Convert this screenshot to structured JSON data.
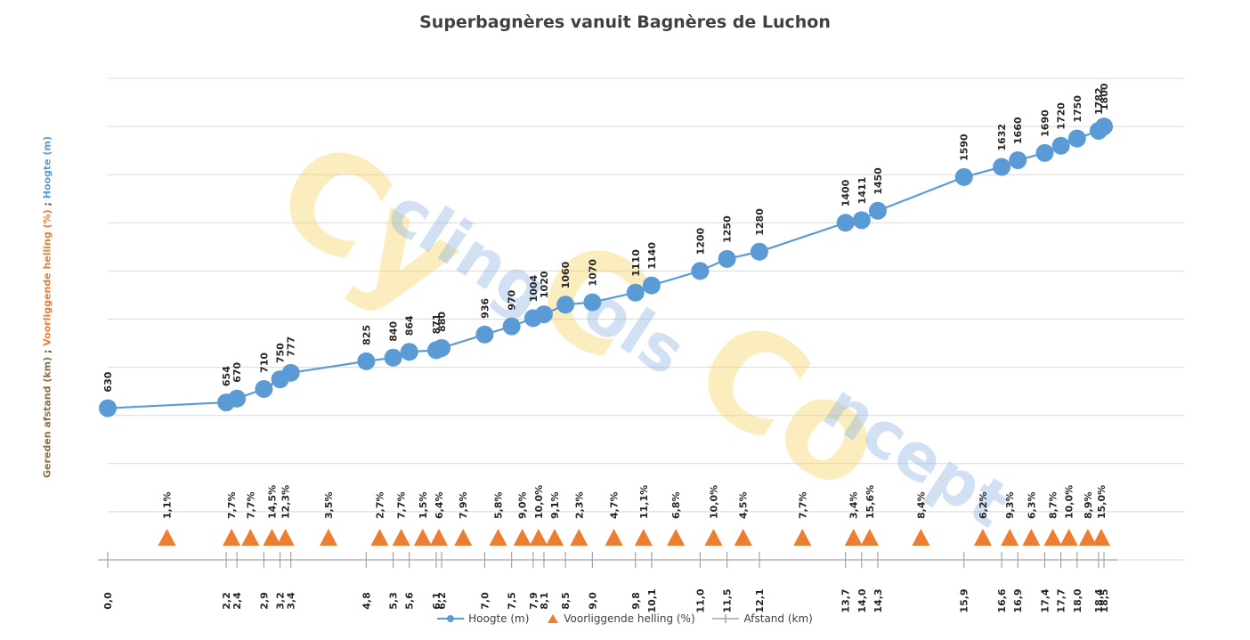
{
  "chart_data": {
    "type": "line",
    "title": "Superbagnères vanuit Bagnères de Luchon",
    "yaxis_title": {
      "parts": [
        {
          "text": "Gereden afstand (km)",
          "color": "#8c6d45"
        },
        {
          "text": " ; ",
          "color": "#404040"
        },
        {
          "text": "Voorliggende helling (%)",
          "color": "#ed7d31"
        },
        {
          "text": " ; ",
          "color": "#404040"
        },
        {
          "text": "Hoogte (m)",
          "color": "#5b9bd5"
        }
      ]
    },
    "grid": true,
    "ylim": [
      0,
      2000
    ],
    "legend_position": "bottom",
    "watermark": "CyclingColsConcept",
    "series": [
      {
        "name": "Hoogte (m)",
        "color": "#5b9bd5",
        "marker": "circle",
        "x": [
          0.0,
          2.2,
          2.4,
          2.9,
          3.2,
          3.4,
          4.8,
          5.3,
          5.6,
          6.1,
          6.2,
          7.0,
          7.5,
          7.9,
          8.1,
          8.5,
          9.0,
          9.8,
          10.1,
          11.0,
          11.5,
          12.1,
          13.7,
          14.0,
          14.3,
          15.9,
          16.6,
          16.9,
          17.4,
          17.7,
          18.0,
          18.4,
          18.5
        ],
        "values": [
          630,
          654,
          670,
          710,
          750,
          777,
          825,
          840,
          864,
          871,
          880,
          936,
          970,
          1004,
          1020,
          1060,
          1070,
          1110,
          1140,
          1200,
          1250,
          1280,
          1400,
          1411,
          1450,
          1590,
          1632,
          1660,
          1690,
          1720,
          1750,
          1782,
          1800
        ],
        "labels": [
          "630",
          "654",
          "670",
          "710",
          "750",
          "777",
          "825",
          "840",
          "864",
          "871",
          "880",
          "936",
          "970",
          "1004",
          "1020",
          "1060",
          "1070",
          "1110",
          "1140",
          "1200",
          "1250",
          "1280",
          "1400",
          "1411",
          "1450",
          "1590",
          "1632",
          "1660",
          "1690",
          "1720",
          "1750",
          "1782",
          "1800"
        ]
      },
      {
        "name": "Voorliggende helling (%)",
        "color": "#ed7d31",
        "marker": "triangle",
        "labels": [
          "1,1%",
          "7,7%",
          "7,7%",
          "14,5%",
          "12,3%",
          "3,5%",
          "2,7%",
          "7,7%",
          "1,5%",
          "6,4%",
          "7,9%",
          "5,8%",
          "9,0%",
          "10,0%",
          "9,1%",
          "2,3%",
          "4,7%",
          "11,1%",
          "6,8%",
          "10,0%",
          "4,5%",
          "7,7%",
          "3,4%",
          "15,6%",
          "8,4%",
          "6,2%",
          "9,3%",
          "6,3%",
          "8,7%",
          "10,0%",
          "8,9%",
          "15,0%"
        ]
      },
      {
        "name": "Afstand (km)",
        "color": "#a5a5a5",
        "marker": "tick",
        "labels": [
          "0,0",
          "2,2",
          "2,4",
          "2,9",
          "3,2",
          "3,4",
          "4,8",
          "5,3",
          "5,6",
          "6,1",
          "6,2",
          "7,0",
          "7,5",
          "7,9",
          "8,1",
          "8,5",
          "9,0",
          "9,8",
          "10,1",
          "11,0",
          "11,5",
          "12,1",
          "13,7",
          "14,0",
          "14,3",
          "15,9",
          "16,6",
          "16,9",
          "17,4",
          "17,7",
          "18,0",
          "18,4",
          "18,5"
        ]
      }
    ]
  }
}
